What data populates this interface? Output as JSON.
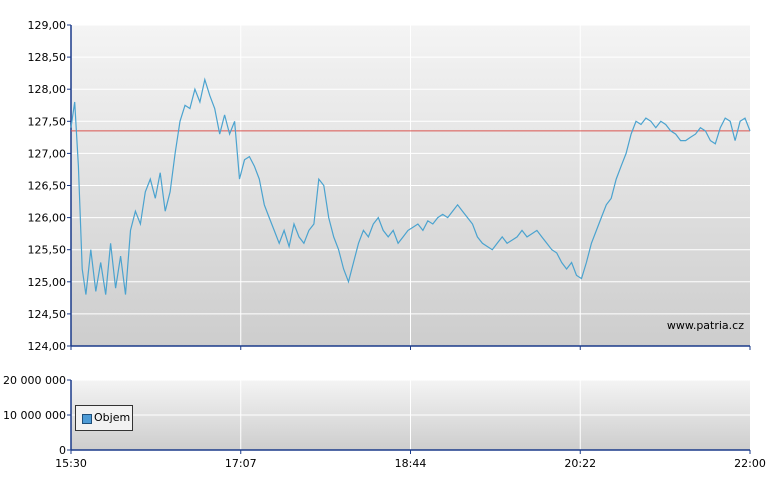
{
  "chart_data": [
    {
      "type": "line",
      "name": "price",
      "x_ticks": [
        "15:30",
        "17:07",
        "18:44",
        "20:22",
        "22:00"
      ],
      "y_ticks": [
        "124,00",
        "124,50",
        "125,00",
        "125,50",
        "126,00",
        "126,50",
        "127,00",
        "127,50",
        "128,00",
        "128,50",
        "129,00"
      ],
      "ylim": [
        124.0,
        129.0
      ],
      "reference_line": 127.35,
      "watermark": "www.patria.cz",
      "grid": true,
      "colors": {
        "line": "#4ba3cf",
        "reference": "#d9534f"
      },
      "series": [
        {
          "values": [
            [
              0.0,
              127.4
            ],
            [
              0.3,
              127.8
            ],
            [
              0.6,
              126.8
            ],
            [
              0.9,
              125.2
            ],
            [
              1.2,
              124.8
            ],
            [
              1.6,
              125.5
            ],
            [
              2.0,
              124.85
            ],
            [
              2.4,
              125.3
            ],
            [
              2.8,
              124.8
            ],
            [
              3.2,
              125.6
            ],
            [
              3.6,
              124.9
            ],
            [
              4.0,
              125.4
            ],
            [
              4.4,
              124.8
            ],
            [
              4.8,
              125.8
            ],
            [
              5.2,
              126.1
            ],
            [
              5.6,
              125.9
            ],
            [
              6.0,
              126.4
            ],
            [
              6.4,
              126.6
            ],
            [
              6.8,
              126.3
            ],
            [
              7.2,
              126.7
            ],
            [
              7.6,
              126.1
            ],
            [
              8.0,
              126.4
            ],
            [
              8.4,
              127.0
            ],
            [
              8.8,
              127.5
            ],
            [
              9.2,
              127.75
            ],
            [
              9.6,
              127.7
            ],
            [
              10.0,
              128.0
            ],
            [
              10.4,
              127.8
            ],
            [
              10.8,
              128.15
            ],
            [
              11.2,
              127.9
            ],
            [
              11.6,
              127.7
            ],
            [
              12.0,
              127.3
            ],
            [
              12.4,
              127.6
            ],
            [
              12.8,
              127.3
            ],
            [
              13.2,
              127.5
            ],
            [
              13.6,
              126.6
            ],
            [
              14.0,
              126.9
            ],
            [
              14.4,
              126.95
            ],
            [
              14.8,
              126.8
            ],
            [
              15.2,
              126.6
            ],
            [
              15.6,
              126.2
            ],
            [
              16.0,
              126.0
            ],
            [
              16.4,
              125.8
            ],
            [
              16.8,
              125.6
            ],
            [
              17.2,
              125.8
            ],
            [
              17.6,
              125.55
            ],
            [
              18.0,
              125.9
            ],
            [
              18.4,
              125.7
            ],
            [
              18.8,
              125.6
            ],
            [
              19.2,
              125.8
            ],
            [
              19.6,
              125.9
            ],
            [
              20.0,
              126.6
            ],
            [
              20.4,
              126.5
            ],
            [
              20.8,
              126.0
            ],
            [
              21.2,
              125.7
            ],
            [
              21.6,
              125.5
            ],
            [
              22.0,
              125.2
            ],
            [
              22.4,
              125.0
            ],
            [
              22.8,
              125.3
            ],
            [
              23.2,
              125.6
            ],
            [
              23.6,
              125.8
            ],
            [
              24.0,
              125.7
            ],
            [
              24.4,
              125.9
            ],
            [
              24.8,
              126.0
            ],
            [
              25.2,
              125.8
            ],
            [
              25.6,
              125.7
            ],
            [
              26.0,
              125.8
            ],
            [
              26.4,
              125.6
            ],
            [
              26.8,
              125.7
            ],
            [
              27.2,
              125.8
            ],
            [
              27.6,
              125.85
            ],
            [
              28.0,
              125.9
            ],
            [
              28.4,
              125.8
            ],
            [
              28.8,
              125.95
            ],
            [
              29.2,
              125.9
            ],
            [
              29.6,
              126.0
            ],
            [
              30.0,
              126.05
            ],
            [
              30.4,
              126.0
            ],
            [
              30.8,
              126.1
            ],
            [
              31.2,
              126.2
            ],
            [
              31.6,
              126.1
            ],
            [
              32.0,
              126.0
            ],
            [
              32.4,
              125.9
            ],
            [
              32.8,
              125.7
            ],
            [
              33.2,
              125.6
            ],
            [
              33.6,
              125.55
            ],
            [
              34.0,
              125.5
            ],
            [
              34.4,
              125.6
            ],
            [
              34.8,
              125.7
            ],
            [
              35.2,
              125.6
            ],
            [
              35.6,
              125.65
            ],
            [
              36.0,
              125.7
            ],
            [
              36.4,
              125.8
            ],
            [
              36.8,
              125.7
            ],
            [
              37.2,
              125.75
            ],
            [
              37.6,
              125.8
            ],
            [
              38.0,
              125.7
            ],
            [
              38.4,
              125.6
            ],
            [
              38.8,
              125.5
            ],
            [
              39.2,
              125.45
            ],
            [
              39.6,
              125.3
            ],
            [
              40.0,
              125.2
            ],
            [
              40.4,
              125.3
            ],
            [
              40.8,
              125.1
            ],
            [
              41.2,
              125.05
            ],
            [
              41.6,
              125.3
            ],
            [
              42.0,
              125.6
            ],
            [
              42.4,
              125.8
            ],
            [
              42.8,
              126.0
            ],
            [
              43.2,
              126.2
            ],
            [
              43.6,
              126.3
            ],
            [
              44.0,
              126.6
            ],
            [
              44.4,
              126.8
            ],
            [
              44.8,
              127.0
            ],
            [
              45.2,
              127.3
            ],
            [
              45.6,
              127.5
            ],
            [
              46.0,
              127.45
            ],
            [
              46.4,
              127.55
            ],
            [
              46.8,
              127.5
            ],
            [
              47.2,
              127.4
            ],
            [
              47.6,
              127.5
            ],
            [
              48.0,
              127.45
            ],
            [
              48.4,
              127.35
            ],
            [
              48.8,
              127.3
            ],
            [
              49.2,
              127.2
            ],
            [
              49.6,
              127.2
            ],
            [
              50.0,
              127.25
            ],
            [
              50.4,
              127.3
            ],
            [
              50.8,
              127.4
            ],
            [
              51.2,
              127.35
            ],
            [
              51.6,
              127.2
            ],
            [
              52.0,
              127.15
            ],
            [
              52.4,
              127.4
            ],
            [
              52.8,
              127.55
            ],
            [
              53.2,
              127.5
            ],
            [
              53.6,
              127.2
            ],
            [
              54.0,
              127.5
            ],
            [
              54.4,
              127.55
            ],
            [
              54.8,
              127.35
            ]
          ]
        }
      ]
    },
    {
      "type": "bar",
      "name": "volume",
      "y_ticks": [
        "0",
        "10 000 000",
        "20 000 000"
      ],
      "ylim": [
        0,
        20000000
      ],
      "legend": "Objem",
      "grid": true,
      "colors": {
        "bar": "#4d9bd6"
      },
      "values": []
    }
  ]
}
